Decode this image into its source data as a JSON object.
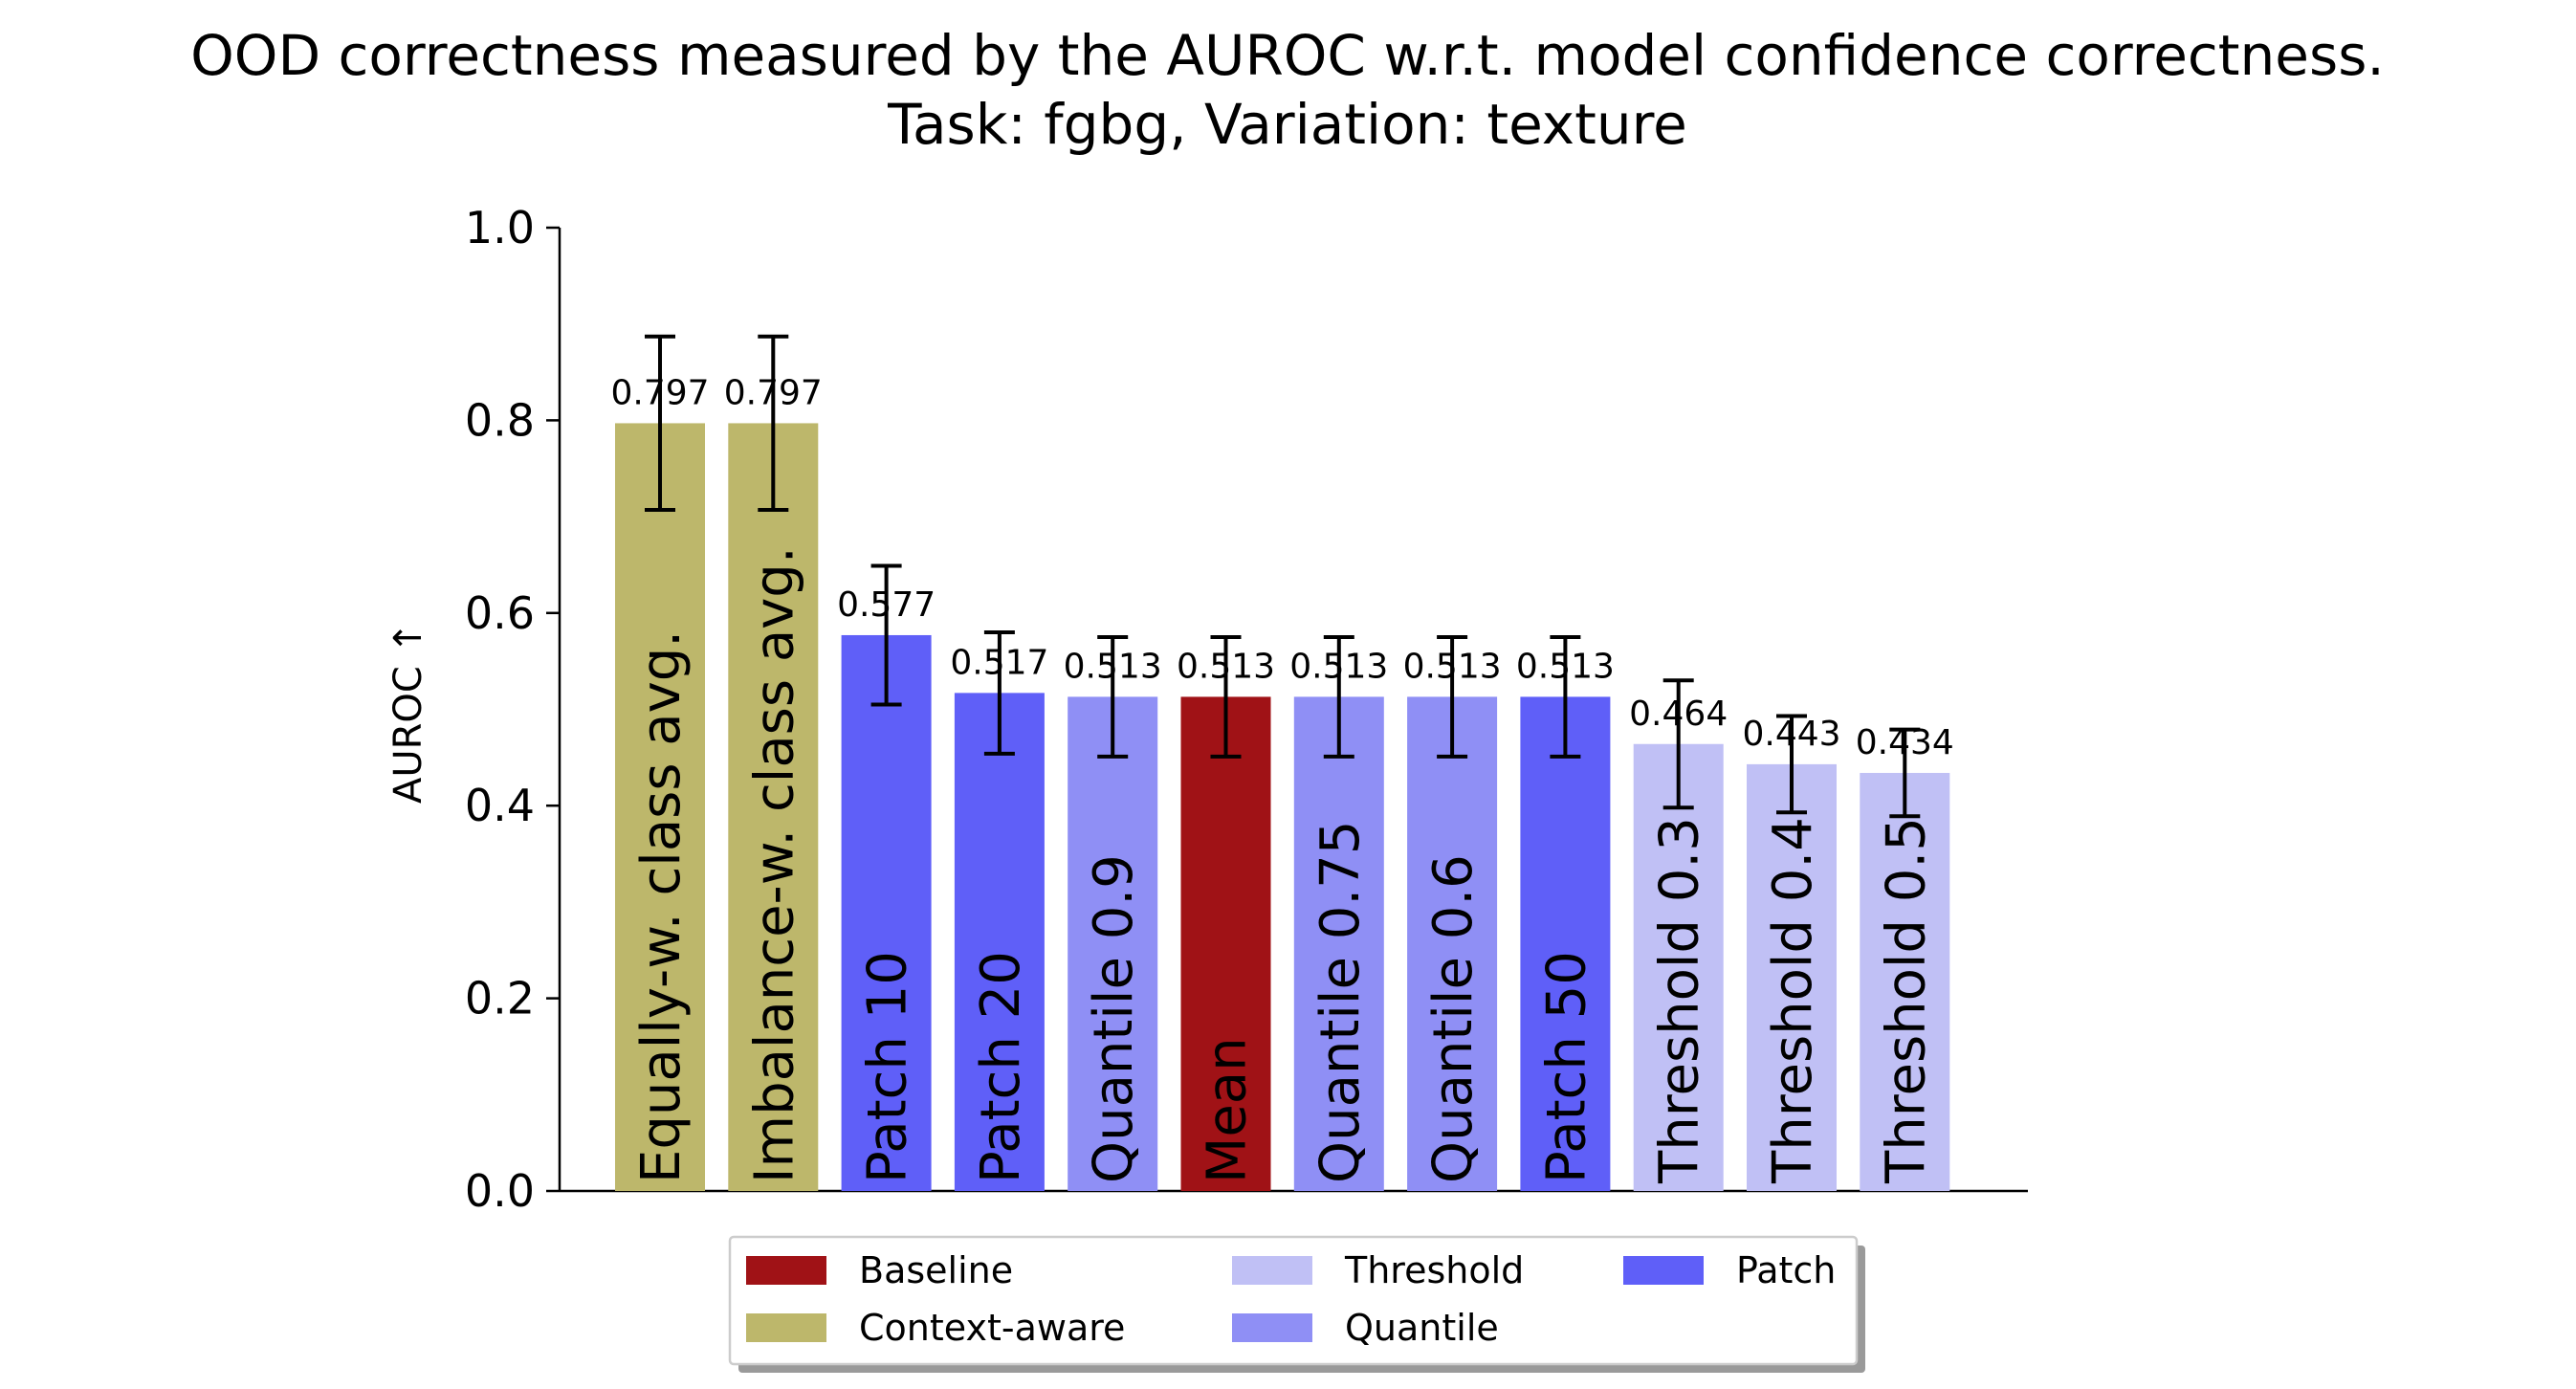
{
  "chart_data": {
    "type": "bar",
    "title": "OOD correctness measured by the AUROC w.r.t. model confidence correctness.",
    "subtitle": "Task: fgbg, Variation: texture",
    "xlabel": "",
    "ylabel": "AUROC ↑",
    "ylim": [
      0.0,
      1.0
    ],
    "yticks": [
      "0.0",
      "0.2",
      "0.4",
      "0.6",
      "0.8",
      "1.0"
    ],
    "grid": false,
    "legend_position": "bottom-center",
    "categories": [
      "Equally-w. class avg.",
      "Imbalance-w. class avg.",
      "Patch 10",
      "Patch 20",
      "Quantile 0.9",
      "Mean",
      "Quantile 0.75",
      "Quantile 0.6",
      "Patch 50",
      "Threshold 0.3",
      "Threshold 0.4",
      "Threshold 0.5"
    ],
    "values": [
      0.797,
      0.797,
      0.577,
      0.517,
      0.513,
      0.513,
      0.513,
      0.513,
      0.513,
      0.464,
      0.443,
      0.434
    ],
    "error": [
      0.09,
      0.09,
      0.072,
      0.063,
      0.062,
      0.062,
      0.062,
      0.062,
      0.062,
      0.066,
      0.05,
      0.045
    ],
    "data_labels": [
      "0.797",
      "0.797",
      "0.577",
      "0.517",
      "0.513",
      "0.513",
      "0.513",
      "0.513",
      "0.513",
      "0.464",
      "0.443",
      "0.434"
    ],
    "groups": [
      "Context-aware",
      "Context-aware",
      "Patch",
      "Patch",
      "Quantile",
      "Baseline",
      "Quantile",
      "Quantile",
      "Patch",
      "Threshold",
      "Threshold",
      "Threshold"
    ],
    "colors": {
      "Baseline": "#a01216",
      "Context-aware": "#bdb76b",
      "Threshold": "#c0c0f5",
      "Quantile": "#8f8ff5",
      "Patch": "#5f5ff8"
    },
    "legend": [
      "Baseline",
      "Context-aware",
      "Threshold",
      "Quantile",
      "Patch"
    ]
  }
}
